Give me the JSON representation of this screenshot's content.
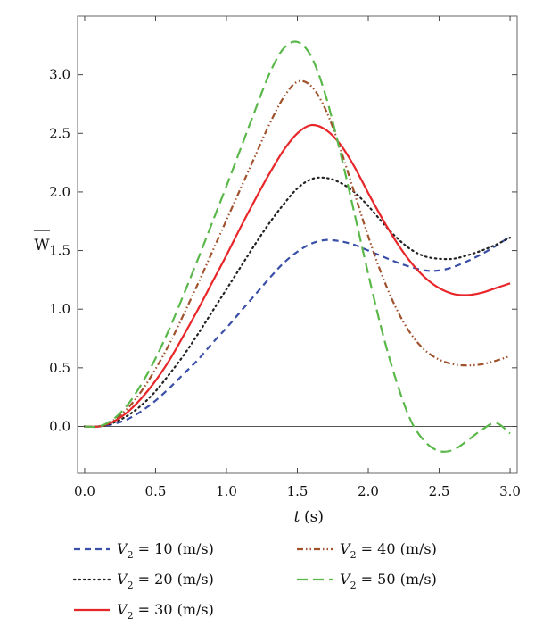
{
  "chart_data": {
    "type": "line",
    "title": "",
    "xlabel": "t (s)",
    "ylabel": "W",
    "xlim": [
      -0.05,
      3.05
    ],
    "ylim": [
      -0.4,
      3.5
    ],
    "x_ticks": [
      "0.0",
      "0.5",
      "1.0",
      "1.5",
      "2.0",
      "2.5",
      "3.0"
    ],
    "y_ticks": [
      "0.0",
      "0.5",
      "1.0",
      "1.5",
      "2.0",
      "2.5",
      "3.0"
    ],
    "grid": false,
    "legend_position": "bottom",
    "series": [
      {
        "name": "V2 = 10 (m/s)",
        "label_var": "V",
        "label_sub": "2",
        "label_rest": " = 10 (m/s)",
        "color": "#3a4fa8",
        "dash": "7,5",
        "points": [
          [
            0,
            0
          ],
          [
            0.1,
            0
          ],
          [
            0.2,
            0.02
          ],
          [
            0.3,
            0.06
          ],
          [
            0.4,
            0.13
          ],
          [
            0.5,
            0.22
          ],
          [
            0.6,
            0.33
          ],
          [
            0.7,
            0.45
          ],
          [
            0.8,
            0.57
          ],
          [
            0.9,
            0.71
          ],
          [
            1.0,
            0.84
          ],
          [
            1.1,
            0.98
          ],
          [
            1.2,
            1.12
          ],
          [
            1.3,
            1.26
          ],
          [
            1.4,
            1.39
          ],
          [
            1.5,
            1.49
          ],
          [
            1.6,
            1.56
          ],
          [
            1.7,
            1.59
          ],
          [
            1.8,
            1.58
          ],
          [
            1.9,
            1.55
          ],
          [
            2.0,
            1.5
          ],
          [
            2.1,
            1.45
          ],
          [
            2.2,
            1.4
          ],
          [
            2.3,
            1.36
          ],
          [
            2.4,
            1.33
          ],
          [
            2.5,
            1.33
          ],
          [
            2.6,
            1.36
          ],
          [
            2.7,
            1.41
          ],
          [
            2.8,
            1.47
          ],
          [
            2.9,
            1.54
          ],
          [
            3.0,
            1.62
          ]
        ]
      },
      {
        "name": "V2 = 20 (m/s)",
        "label_var": "V",
        "label_sub": "2",
        "label_rest": " = 20 (m/s)",
        "color": "#222222",
        "dash": "1.5,4",
        "points": [
          [
            0,
            0
          ],
          [
            0.1,
            0
          ],
          [
            0.2,
            0.03
          ],
          [
            0.3,
            0.09
          ],
          [
            0.4,
            0.18
          ],
          [
            0.5,
            0.3
          ],
          [
            0.6,
            0.45
          ],
          [
            0.7,
            0.61
          ],
          [
            0.8,
            0.79
          ],
          [
            0.9,
            0.98
          ],
          [
            1.0,
            1.17
          ],
          [
            1.1,
            1.36
          ],
          [
            1.2,
            1.55
          ],
          [
            1.3,
            1.73
          ],
          [
            1.4,
            1.89
          ],
          [
            1.5,
            2.03
          ],
          [
            1.6,
            2.11
          ],
          [
            1.7,
            2.12
          ],
          [
            1.8,
            2.08
          ],
          [
            1.9,
            2.0
          ],
          [
            2.0,
            1.88
          ],
          [
            2.1,
            1.74
          ],
          [
            2.2,
            1.61
          ],
          [
            2.3,
            1.51
          ],
          [
            2.4,
            1.45
          ],
          [
            2.5,
            1.43
          ],
          [
            2.6,
            1.43
          ],
          [
            2.7,
            1.46
          ],
          [
            2.8,
            1.5
          ],
          [
            2.9,
            1.55
          ],
          [
            3.0,
            1.61
          ]
        ]
      },
      {
        "name": "V2 = 30 (m/s)",
        "label_var": "V",
        "label_sub": "2",
        "label_rest": " = 30 (m/s)",
        "color": "#e8262a",
        "dash": "",
        "points": [
          [
            0,
            0
          ],
          [
            0.1,
            0
          ],
          [
            0.2,
            0.04
          ],
          [
            0.3,
            0.12
          ],
          [
            0.4,
            0.24
          ],
          [
            0.5,
            0.39
          ],
          [
            0.6,
            0.57
          ],
          [
            0.7,
            0.78
          ],
          [
            0.8,
            1.0
          ],
          [
            0.9,
            1.23
          ],
          [
            1.0,
            1.46
          ],
          [
            1.1,
            1.7
          ],
          [
            1.2,
            1.93
          ],
          [
            1.3,
            2.15
          ],
          [
            1.4,
            2.35
          ],
          [
            1.5,
            2.5
          ],
          [
            1.6,
            2.57
          ],
          [
            1.7,
            2.53
          ],
          [
            1.8,
            2.41
          ],
          [
            1.9,
            2.22
          ],
          [
            2.0,
            1.99
          ],
          [
            2.1,
            1.77
          ],
          [
            2.2,
            1.57
          ],
          [
            2.3,
            1.4
          ],
          [
            2.4,
            1.27
          ],
          [
            2.5,
            1.18
          ],
          [
            2.6,
            1.13
          ],
          [
            2.7,
            1.12
          ],
          [
            2.8,
            1.14
          ],
          [
            2.9,
            1.18
          ],
          [
            3.0,
            1.22
          ]
        ]
      },
      {
        "name": "V2 = 40 (m/s)",
        "label_var": "V",
        "label_sub": "2",
        "label_rest": " = 40 (m/s)",
        "color": "#a0522d",
        "dash": "7,3,1.5,3,1.5,3",
        "points": [
          [
            0,
            0
          ],
          [
            0.1,
            0
          ],
          [
            0.2,
            0.05
          ],
          [
            0.3,
            0.15
          ],
          [
            0.4,
            0.3
          ],
          [
            0.5,
            0.49
          ],
          [
            0.6,
            0.71
          ],
          [
            0.7,
            0.96
          ],
          [
            0.8,
            1.22
          ],
          [
            0.9,
            1.49
          ],
          [
            1.0,
            1.76
          ],
          [
            1.1,
            2.03
          ],
          [
            1.2,
            2.3
          ],
          [
            1.3,
            2.57
          ],
          [
            1.4,
            2.8
          ],
          [
            1.5,
            2.94
          ],
          [
            1.6,
            2.9
          ],
          [
            1.7,
            2.7
          ],
          [
            1.8,
            2.38
          ],
          [
            1.9,
            2.0
          ],
          [
            2.0,
            1.62
          ],
          [
            2.1,
            1.28
          ],
          [
            2.2,
            1.0
          ],
          [
            2.3,
            0.79
          ],
          [
            2.4,
            0.65
          ],
          [
            2.5,
            0.57
          ],
          [
            2.6,
            0.53
          ],
          [
            2.7,
            0.52
          ],
          [
            2.8,
            0.53
          ],
          [
            2.9,
            0.56
          ],
          [
            3.0,
            0.6
          ]
        ]
      },
      {
        "name": "V2 = 50 (m/s)",
        "label_var": "V",
        "label_sub": "2",
        "label_rest": " = 50 (m/s)",
        "color": "#5ab84a",
        "dash": "12,6",
        "points": [
          [
            0,
            0
          ],
          [
            0.1,
            0
          ],
          [
            0.2,
            0.06
          ],
          [
            0.3,
            0.18
          ],
          [
            0.4,
            0.36
          ],
          [
            0.5,
            0.58
          ],
          [
            0.6,
            0.84
          ],
          [
            0.7,
            1.13
          ],
          [
            0.8,
            1.43
          ],
          [
            0.9,
            1.74
          ],
          [
            1.0,
            2.05
          ],
          [
            1.1,
            2.37
          ],
          [
            1.2,
            2.69
          ],
          [
            1.3,
            3.0
          ],
          [
            1.4,
            3.22
          ],
          [
            1.5,
            3.28
          ],
          [
            1.6,
            3.15
          ],
          [
            1.7,
            2.82
          ],
          [
            1.8,
            2.35
          ],
          [
            1.9,
            1.83
          ],
          [
            2.0,
            1.3
          ],
          [
            2.1,
            0.8
          ],
          [
            2.2,
            0.38
          ],
          [
            2.3,
            0.05
          ],
          [
            2.4,
            -0.13
          ],
          [
            2.5,
            -0.21
          ],
          [
            2.6,
            -0.2
          ],
          [
            2.7,
            -0.12
          ],
          [
            2.8,
            -0.03
          ],
          [
            2.9,
            0.03
          ],
          [
            3.0,
            -0.06
          ]
        ]
      }
    ]
  }
}
